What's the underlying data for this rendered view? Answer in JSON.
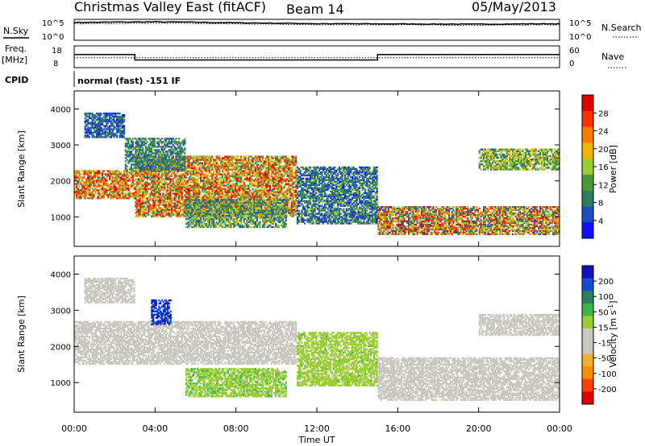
{
  "header": {
    "station": "Christmas Valley East (fitACF)",
    "beam": "Beam 14",
    "date": "05/May/2013"
  },
  "summary_panel": {
    "nsky_label": "N.Sky",
    "nsearch_label": "N.Search",
    "nsky_ticks": [
      "10^5",
      "10^0"
    ],
    "nsearch_ticks": [
      "10^5",
      "10^0"
    ],
    "freq_label": "Freq.",
    "freq_unit": "[MHz]",
    "freq_ticks": [
      "18",
      "8"
    ],
    "nave_label": "Nave",
    "nave_ticks": [
      "60",
      "0"
    ],
    "cpid_label": "CPID",
    "cpid_text": "normal (fast) -151 IF"
  },
  "colors": {
    "power_scale": [
      "#1010ff",
      "#2050c0",
      "#2e7d5e",
      "#4a9a3a",
      "#9acd32",
      "#f0b400",
      "#ff7a00",
      "#ff3000",
      "#e00000"
    ],
    "velocity_scale": [
      "#e00000",
      "#ff4000",
      "#ff8c00",
      "#f0b030",
      "#c8c8be",
      "#c8c8be",
      "#9acd32",
      "#3cb44b",
      "#2e7d5e",
      "#1050d0",
      "#1010c0"
    ]
  },
  "chart_data": [
    {
      "type": "line",
      "title": "N.Sky / N.Search",
      "ylabel": "N.Sky",
      "y2label": "N.Search",
      "yscale": "log",
      "ylim": [
        1,
        100000
      ],
      "x": [
        "00:00",
        "04:00",
        "08:00",
        "12:00",
        "16:00",
        "20:00",
        "00:00"
      ],
      "series": [
        {
          "name": "N.Sky",
          "values": [
            18000,
            25000,
            15000,
            9000,
            8000,
            7000,
            9000
          ]
        },
        {
          "name": "N.Search",
          "values": [
            9000,
            12000,
            8000,
            5000,
            5000,
            4000,
            5000
          ]
        }
      ]
    },
    {
      "type": "line",
      "title": "Freq. / Nave",
      "ylabel": "Freq. [MHz]",
      "y2label": "Nave",
      "x_hours": [
        0,
        3,
        3,
        15,
        15,
        24
      ],
      "series": [
        {
          "name": "Freq.",
          "values": [
            14,
            14,
            11.5,
            11.5,
            14,
            14
          ]
        },
        {
          "name": "Nave",
          "values": [
            27,
            27,
            27,
            27,
            27,
            27
          ]
        }
      ]
    },
    {
      "type": "heatmap",
      "title": "Power",
      "xlabel": "Time UT",
      "ylabel": "Slant Range [km]",
      "x_ticks": [
        "00:00",
        "04:00",
        "08:00",
        "12:00",
        "16:00",
        "20:00",
        "00:00"
      ],
      "xlim_hours": [
        0,
        24
      ],
      "y_ticks": [
        "1000",
        "2000",
        "3000",
        "4000"
      ],
      "ylim": [
        180,
        4500
      ],
      "colorbar_label": "Power [dB]",
      "colorbar_ticks": [
        "28",
        "24",
        "20",
        "16",
        "12",
        "8",
        "4"
      ],
      "colorbar_range": [
        0,
        30
      ],
      "echo_regions": [
        {
          "t0": 0,
          "t1": 3,
          "r0": 1500,
          "r1": 2300,
          "vmin": 10,
          "vmax": 30
        },
        {
          "t0": 3,
          "t1": 11,
          "r0": 1000,
          "r1": 2700,
          "vmin": 8,
          "vmax": 30
        },
        {
          "t0": 5.5,
          "t1": 10.5,
          "r0": 700,
          "r1": 1500,
          "vmin": 4,
          "vmax": 18
        },
        {
          "t0": 11,
          "t1": 15,
          "r0": 800,
          "r1": 2400,
          "vmin": 2,
          "vmax": 14
        },
        {
          "t0": 15,
          "t1": 24,
          "r0": 500,
          "r1": 1300,
          "vmin": 4,
          "vmax": 30
        },
        {
          "t0": 0.5,
          "t1": 2.5,
          "r0": 3200,
          "r1": 3900,
          "vmin": 2,
          "vmax": 10
        },
        {
          "t0": 2.5,
          "t1": 5.5,
          "r0": 2300,
          "r1": 3200,
          "vmin": 4,
          "vmax": 14
        },
        {
          "t0": 20,
          "t1": 24,
          "r0": 2300,
          "r1": 2900,
          "vmin": 6,
          "vmax": 20
        }
      ]
    },
    {
      "type": "heatmap",
      "title": "Velocity",
      "xlabel": "Time UT",
      "ylabel": "Slant Range [km]",
      "x_ticks": [
        "00:00",
        "04:00",
        "08:00",
        "12:00",
        "16:00",
        "20:00",
        "00:00"
      ],
      "xlim_hours": [
        0,
        24
      ],
      "y_ticks": [
        "1000",
        "2000",
        "3000",
        "4000"
      ],
      "ylim": [
        180,
        4500
      ],
      "colorbar_label": "Velocity [m s^-1]",
      "colorbar_ticks": [
        "200",
        "100",
        "50",
        "15",
        "-15",
        "-50",
        "-100",
        "-200"
      ],
      "colorbar_range": [
        -250,
        250
      ],
      "echo_regions": [
        {
          "t0": 0,
          "t1": 11,
          "r0": 1500,
          "r1": 2700,
          "vmin": -15,
          "vmax": 15
        },
        {
          "t0": 5.5,
          "t1": 10.5,
          "r0": 600,
          "r1": 1400,
          "vmin": 20,
          "vmax": 80
        },
        {
          "t0": 3.8,
          "t1": 4.8,
          "r0": 2600,
          "r1": 3300,
          "vmin": 180,
          "vmax": 230
        },
        {
          "t0": 11,
          "t1": 15,
          "r0": 900,
          "r1": 2400,
          "vmin": 20,
          "vmax": 70
        },
        {
          "t0": 15,
          "t1": 24,
          "r0": 500,
          "r1": 1700,
          "vmin": -15,
          "vmax": 15
        },
        {
          "t0": 20,
          "t1": 24,
          "r0": 2300,
          "r1": 2900,
          "vmin": -15,
          "vmax": 15
        },
        {
          "t0": 0.5,
          "t1": 3,
          "r0": 3200,
          "r1": 3900,
          "vmin": -60,
          "vmax": 10
        }
      ]
    }
  ]
}
